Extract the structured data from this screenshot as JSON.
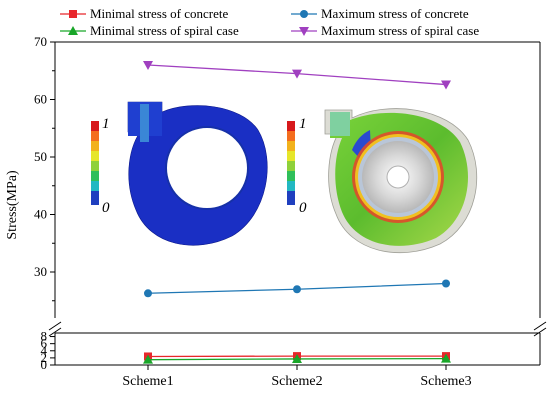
{
  "chart_data": {
    "type": "line",
    "categories": [
      "Scheme1",
      "Scheme2",
      "Scheme3"
    ],
    "ylabel": "Stress(MPa)",
    "xlabel": "",
    "axis_break": true,
    "y_lower": {
      "range": [
        0,
        9
      ],
      "ticks": [
        "0",
        "2",
        "4",
        "6",
        "8"
      ]
    },
    "y_upper": {
      "range": [
        22,
        70
      ],
      "ticks": [
        "30",
        "40",
        "50",
        "60",
        "70"
      ]
    },
    "legend_position": "top",
    "series": [
      {
        "name": "Minimal stress of concrete",
        "color": "#e8262b",
        "marker": "square",
        "values": [
          2.4,
          2.5,
          2.5
        ]
      },
      {
        "name": "Maximum stress of concrete",
        "color": "#1f77b4",
        "marker": "circle",
        "values": [
          26.3,
          27.0,
          28.0
        ]
      },
      {
        "name": "Minimal stress of spiral case",
        "color": "#19a629",
        "marker": "triangle-up",
        "values": [
          1.5,
          1.7,
          1.8
        ]
      },
      {
        "name": "Maximum stress of spiral case",
        "color": "#a040c0",
        "marker": "triangle-down",
        "values": [
          66.0,
          64.5,
          62.6
        ]
      }
    ],
    "insets": [
      {
        "name": "concrete contour",
        "colorbar_max": "1",
        "colorbar_min": "0"
      },
      {
        "name": "spiral case contour",
        "colorbar_max": "1",
        "colorbar_min": "0"
      }
    ]
  }
}
